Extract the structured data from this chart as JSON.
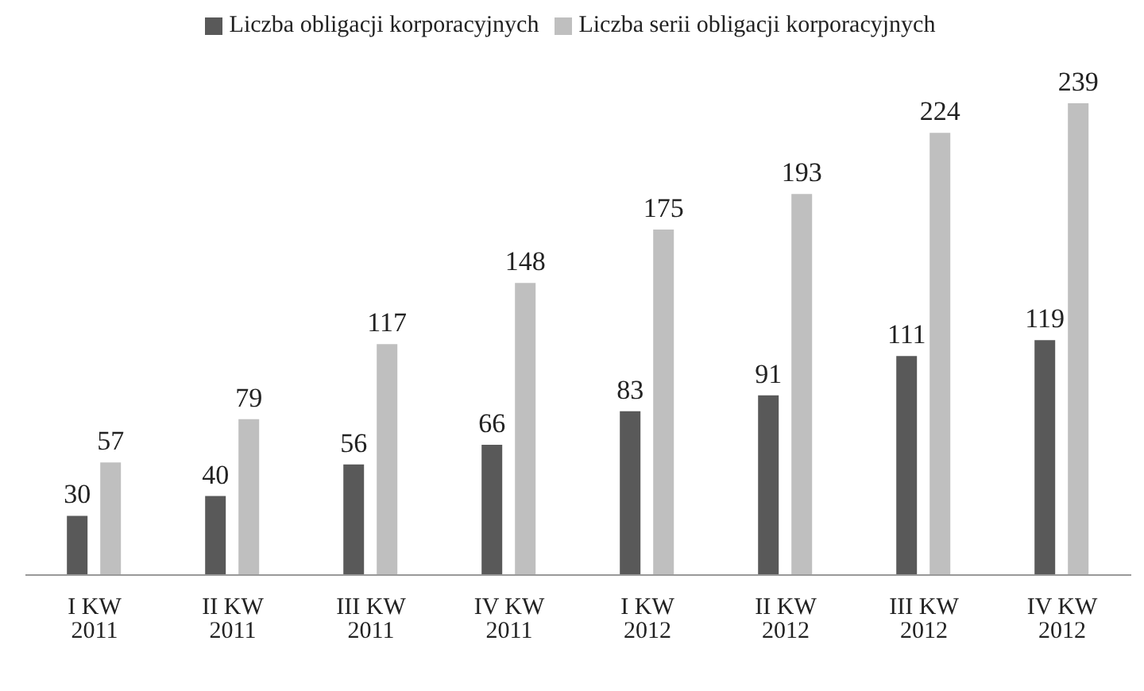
{
  "chart_data": {
    "type": "bar",
    "categories": [
      "I KW 2011",
      "II KW 2011",
      "III KW 2011",
      "IV KW 2011",
      "I KW 2012",
      "II KW 2012",
      "III KW 2012",
      "IV KW 2012"
    ],
    "series": [
      {
        "name": "Liczba obligacji korporacyjnych",
        "color": "#595959",
        "values": [
          30,
          40,
          56,
          66,
          83,
          91,
          111,
          119
        ]
      },
      {
        "name": "Liczba serii obligacji korporacyjnych",
        "color": "#bfbfbf",
        "values": [
          57,
          79,
          117,
          148,
          175,
          193,
          224,
          239
        ]
      }
    ],
    "data_labels": true,
    "legend": "top",
    "grid": false
  }
}
